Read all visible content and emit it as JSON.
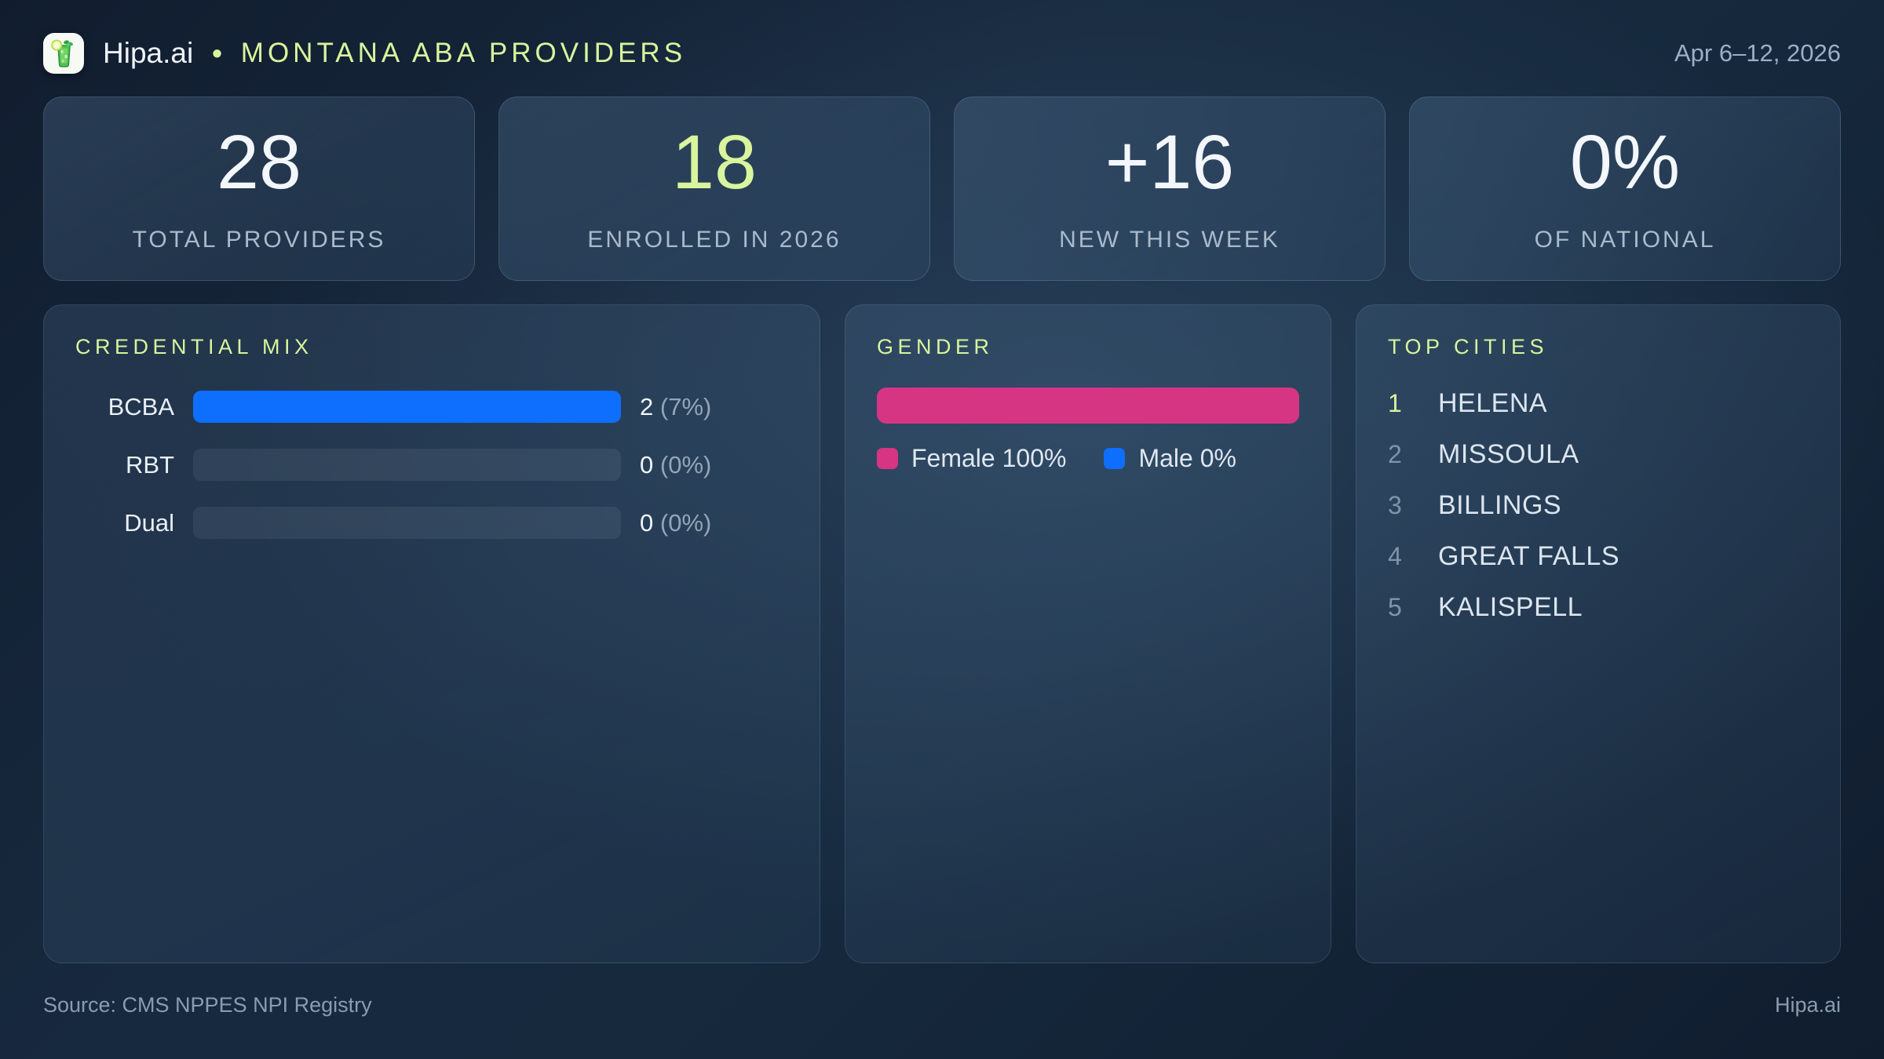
{
  "theme": {
    "accent_green": "#d9f59d",
    "blue": "#0e6efd",
    "pink": "#d53583",
    "number_white": "#f3f7fb"
  },
  "header": {
    "brand": "Hipa.ai",
    "separator": "•",
    "title": "MONTANA ABA PROVIDERS",
    "date_range": "Apr 6–12, 2026",
    "logo_icon": "mojito-glass-icon"
  },
  "stats": [
    {
      "value": "28",
      "label": "TOTAL PROVIDERS",
      "accent": false
    },
    {
      "value": "18",
      "label": "ENROLLED IN 2026",
      "accent": true
    },
    {
      "value": "+16",
      "label": "NEW THIS WEEK",
      "accent": false
    },
    {
      "value": "0%",
      "label": "OF NATIONAL",
      "accent": false
    }
  ],
  "credential_mix": {
    "title": "CREDENTIAL MIX",
    "rows": [
      {
        "label": "BCBA",
        "count": "2",
        "percent": "(7%)",
        "fill_pct": 100,
        "fill_color": "#0e6efd"
      },
      {
        "label": "RBT",
        "count": "0",
        "percent": "(0%)",
        "fill_pct": 0,
        "fill_color": "#0e6efd"
      },
      {
        "label": "Dual",
        "count": "0",
        "percent": "(0%)",
        "fill_pct": 0,
        "fill_color": "#0e6efd"
      }
    ]
  },
  "gender": {
    "title": "GENDER",
    "segments": [
      {
        "name": "Female",
        "pct": 100,
        "color": "#d53583"
      },
      {
        "name": "Male",
        "pct": 0,
        "color": "#0e6efd"
      }
    ],
    "legend": [
      {
        "label": "Female 100%",
        "color": "#d53583"
      },
      {
        "label": "Male 0%",
        "color": "#0e6efd"
      }
    ]
  },
  "top_cities": {
    "title": "TOP CITIES",
    "items": [
      {
        "rank": "1",
        "city": "HELENA"
      },
      {
        "rank": "2",
        "city": "MISSOULA"
      },
      {
        "rank": "3",
        "city": "BILLINGS"
      },
      {
        "rank": "4",
        "city": "GREAT FALLS"
      },
      {
        "rank": "5",
        "city": "KALISPELL"
      }
    ]
  },
  "footer": {
    "source": "Source: CMS NPPES NPI Registry",
    "brand": "Hipa.ai"
  },
  "chart_data": [
    {
      "type": "bar",
      "title": "CREDENTIAL MIX",
      "orientation": "horizontal",
      "categories": [
        "BCBA",
        "RBT",
        "Dual"
      ],
      "values": [
        2,
        0,
        0
      ],
      "value_labels": [
        "2 (7%)",
        "0 (0%)",
        "0 (0%)"
      ],
      "bar_color": "#0e6efd",
      "track_visible": true,
      "note": "bar lengths scaled to max value; BCBA (max) fills full track"
    },
    {
      "type": "bar",
      "title": "GENDER",
      "orientation": "horizontal-stacked",
      "categories": [
        "Female",
        "Male"
      ],
      "values": [
        100,
        0
      ],
      "unit": "percent",
      "colors": [
        "#d53583",
        "#0e6efd"
      ],
      "legend": [
        "Female 100%",
        "Male 0%"
      ],
      "legend_position": "below"
    },
    {
      "type": "table",
      "title": "TOP CITIES",
      "columns": [
        "rank",
        "city"
      ],
      "rows": [
        [
          1,
          "HELENA"
        ],
        [
          2,
          "MISSOULA"
        ],
        [
          3,
          "BILLINGS"
        ],
        [
          4,
          "GREAT FALLS"
        ],
        [
          5,
          "KALISPELL"
        ]
      ]
    },
    {
      "type": "kpi",
      "values": [
        {
          "label": "TOTAL PROVIDERS",
          "value": "28"
        },
        {
          "label": "ENROLLED IN 2026",
          "value": "18"
        },
        {
          "label": "NEW THIS WEEK",
          "value": "+16"
        },
        {
          "label": "OF NATIONAL",
          "value": "0%"
        }
      ]
    }
  ]
}
